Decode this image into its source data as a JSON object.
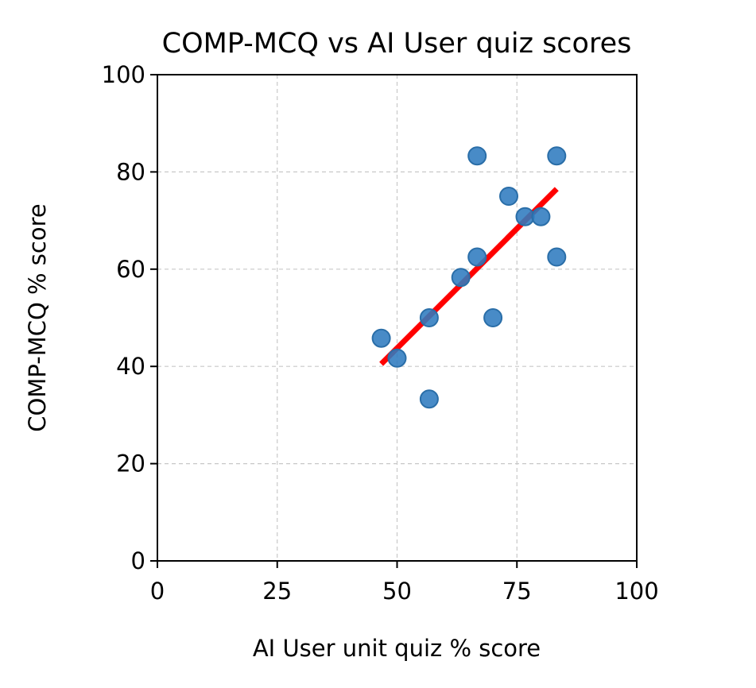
{
  "chart_data": {
    "type": "scatter",
    "title": "COMP-MCQ vs AI User quiz scores",
    "xlabel": "AI User unit quiz % score",
    "ylabel": "COMP-MCQ % score",
    "xlim": [
      0,
      100
    ],
    "ylim": [
      0,
      100
    ],
    "xticks": [
      "0",
      "25",
      "50",
      "75",
      "100"
    ],
    "yticks": [
      "0",
      "20",
      "40",
      "60",
      "80",
      "100"
    ],
    "grid": true,
    "points": [
      {
        "x": 46.7,
        "y": 45.8
      },
      {
        "x": 50.0,
        "y": 41.7
      },
      {
        "x": 56.7,
        "y": 50.0
      },
      {
        "x": 56.7,
        "y": 33.3
      },
      {
        "x": 63.3,
        "y": 58.3
      },
      {
        "x": 66.7,
        "y": 83.3
      },
      {
        "x": 66.7,
        "y": 62.5
      },
      {
        "x": 70.0,
        "y": 50.0
      },
      {
        "x": 73.3,
        "y": 75.0
      },
      {
        "x": 76.7,
        "y": 70.8
      },
      {
        "x": 80.0,
        "y": 70.8
      },
      {
        "x": 83.3,
        "y": 83.3
      },
      {
        "x": 83.3,
        "y": 62.5
      }
    ],
    "fit_line": {
      "x": [
        46.7,
        83.3
      ],
      "y": [
        40.5,
        76.5
      ]
    },
    "point_color": "#1f77b4",
    "fit_color": "#ff0000"
  }
}
